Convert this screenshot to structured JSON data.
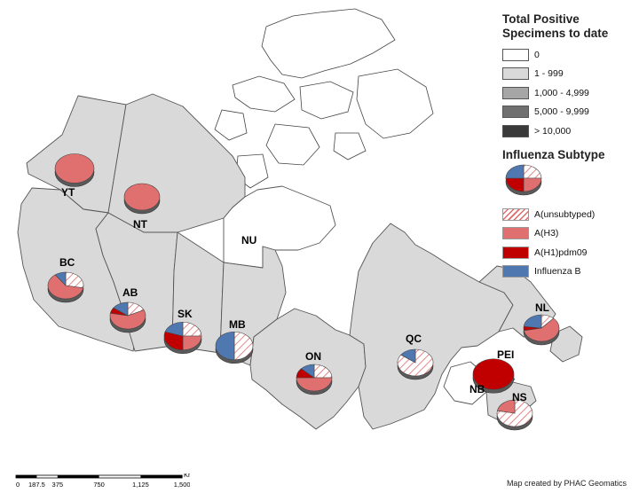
{
  "legend": {
    "positive_title": "Total Positive Specimens to date",
    "positive_classes": [
      {
        "label": "0",
        "color": "#ffffff"
      },
      {
        "label": "1 - 999",
        "color": "#d9d9d9"
      },
      {
        "label": "1,000 - 4,999",
        "color": "#a6a6a6"
      },
      {
        "label": "5,000 - 9,999",
        "color": "#707070"
      },
      {
        "label": "> 10,000",
        "color": "#3a3a3a"
      }
    ],
    "subtype_title": "Influenza Subtype",
    "subtypes": [
      {
        "label": "A(unsubtyped)",
        "color": "#ffffff",
        "hatch": true
      },
      {
        "label": "A(H3)",
        "color": "#e07070",
        "hatch": false
      },
      {
        "label": "A(H1)pdm09",
        "color": "#c00000",
        "hatch": false
      },
      {
        "label": "Influenza B",
        "color": "#4f78b0",
        "hatch": false
      }
    ]
  },
  "provinces": [
    {
      "code": "YT",
      "class": "1 - 999"
    },
    {
      "code": "NT",
      "class": "1 - 999"
    },
    {
      "code": "NU",
      "class": "0"
    },
    {
      "code": "BC",
      "class": "1 - 999"
    },
    {
      "code": "AB",
      "class": "1 - 999"
    },
    {
      "code": "SK",
      "class": "1 - 999"
    },
    {
      "code": "MB",
      "class": "1 - 999"
    },
    {
      "code": "ON",
      "class": "1 - 999"
    },
    {
      "code": "QC",
      "class": "1 - 999"
    },
    {
      "code": "NL",
      "class": "1 - 999"
    },
    {
      "code": "PEI",
      "class": "1 - 999"
    },
    {
      "code": "NS",
      "class": "1 - 999"
    },
    {
      "code": "NB",
      "class": "0"
    }
  ],
  "pies": [
    {
      "code": "YT",
      "shares": [
        0,
        1,
        0,
        0
      ]
    },
    {
      "code": "NT",
      "shares": [
        0,
        1,
        0,
        0
      ]
    },
    {
      "code": "BC",
      "shares": [
        0.28,
        0.62,
        0,
        0.1
      ]
    },
    {
      "code": "AB",
      "shares": [
        0.18,
        0.6,
        0.07,
        0.15
      ]
    },
    {
      "code": "SK",
      "shares": [
        0.25,
        0.25,
        0.3,
        0.2
      ]
    },
    {
      "code": "MB",
      "shares": [
        0.5,
        0,
        0,
        0.5
      ]
    },
    {
      "code": "ON",
      "shares": [
        0.25,
        0.5,
        0.12,
        0.13
      ]
    },
    {
      "code": "QC",
      "shares": [
        0.85,
        0,
        0,
        0.15
      ]
    },
    {
      "code": "NL",
      "shares": [
        0.12,
        0.6,
        0.05,
        0.23
      ]
    },
    {
      "code": "PEI",
      "shares": [
        0,
        0,
        1,
        0
      ]
    },
    {
      "code": "NS",
      "shares": [
        0.78,
        0.22,
        0,
        0
      ]
    }
  ],
  "legend_pie_shares": [
    0.25,
    0.25,
    0.25,
    0.25
  ],
  "scalebar": {
    "ticks": [
      "0",
      "187.5",
      "375",
      "750",
      "1,125",
      "1,500"
    ],
    "unit": "Km"
  },
  "credit": "Map created by PHAC Geomatics"
}
